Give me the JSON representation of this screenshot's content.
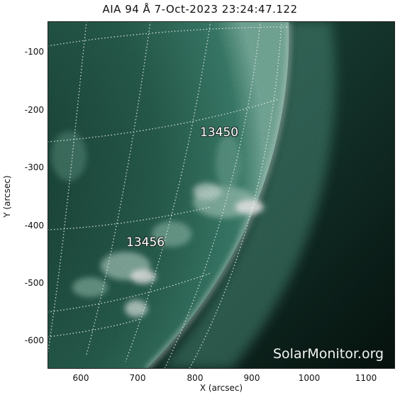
{
  "title": "AIA 94 Å  7-Oct-2023 23:24:47.122",
  "x_axis": {
    "label": "X (arcsec)",
    "ticks": [
      "600",
      "700",
      "800",
      "900",
      "1000",
      "1100"
    ]
  },
  "y_axis": {
    "label": "Y (arcsec)",
    "ticks": [
      "-100",
      "-200",
      "-300",
      "-400",
      "-500",
      "-600"
    ]
  },
  "regions": [
    {
      "label": "13450"
    },
    {
      "label": "13456"
    }
  ],
  "watermark": "SolarMonitor.org",
  "colors": {
    "disk_dark": "#1c4a3c",
    "disk_mid": "#2f6e5c",
    "bright": "#e6f3ee",
    "background_space": "#0a1a15",
    "grid": "#e8f2ee"
  }
}
